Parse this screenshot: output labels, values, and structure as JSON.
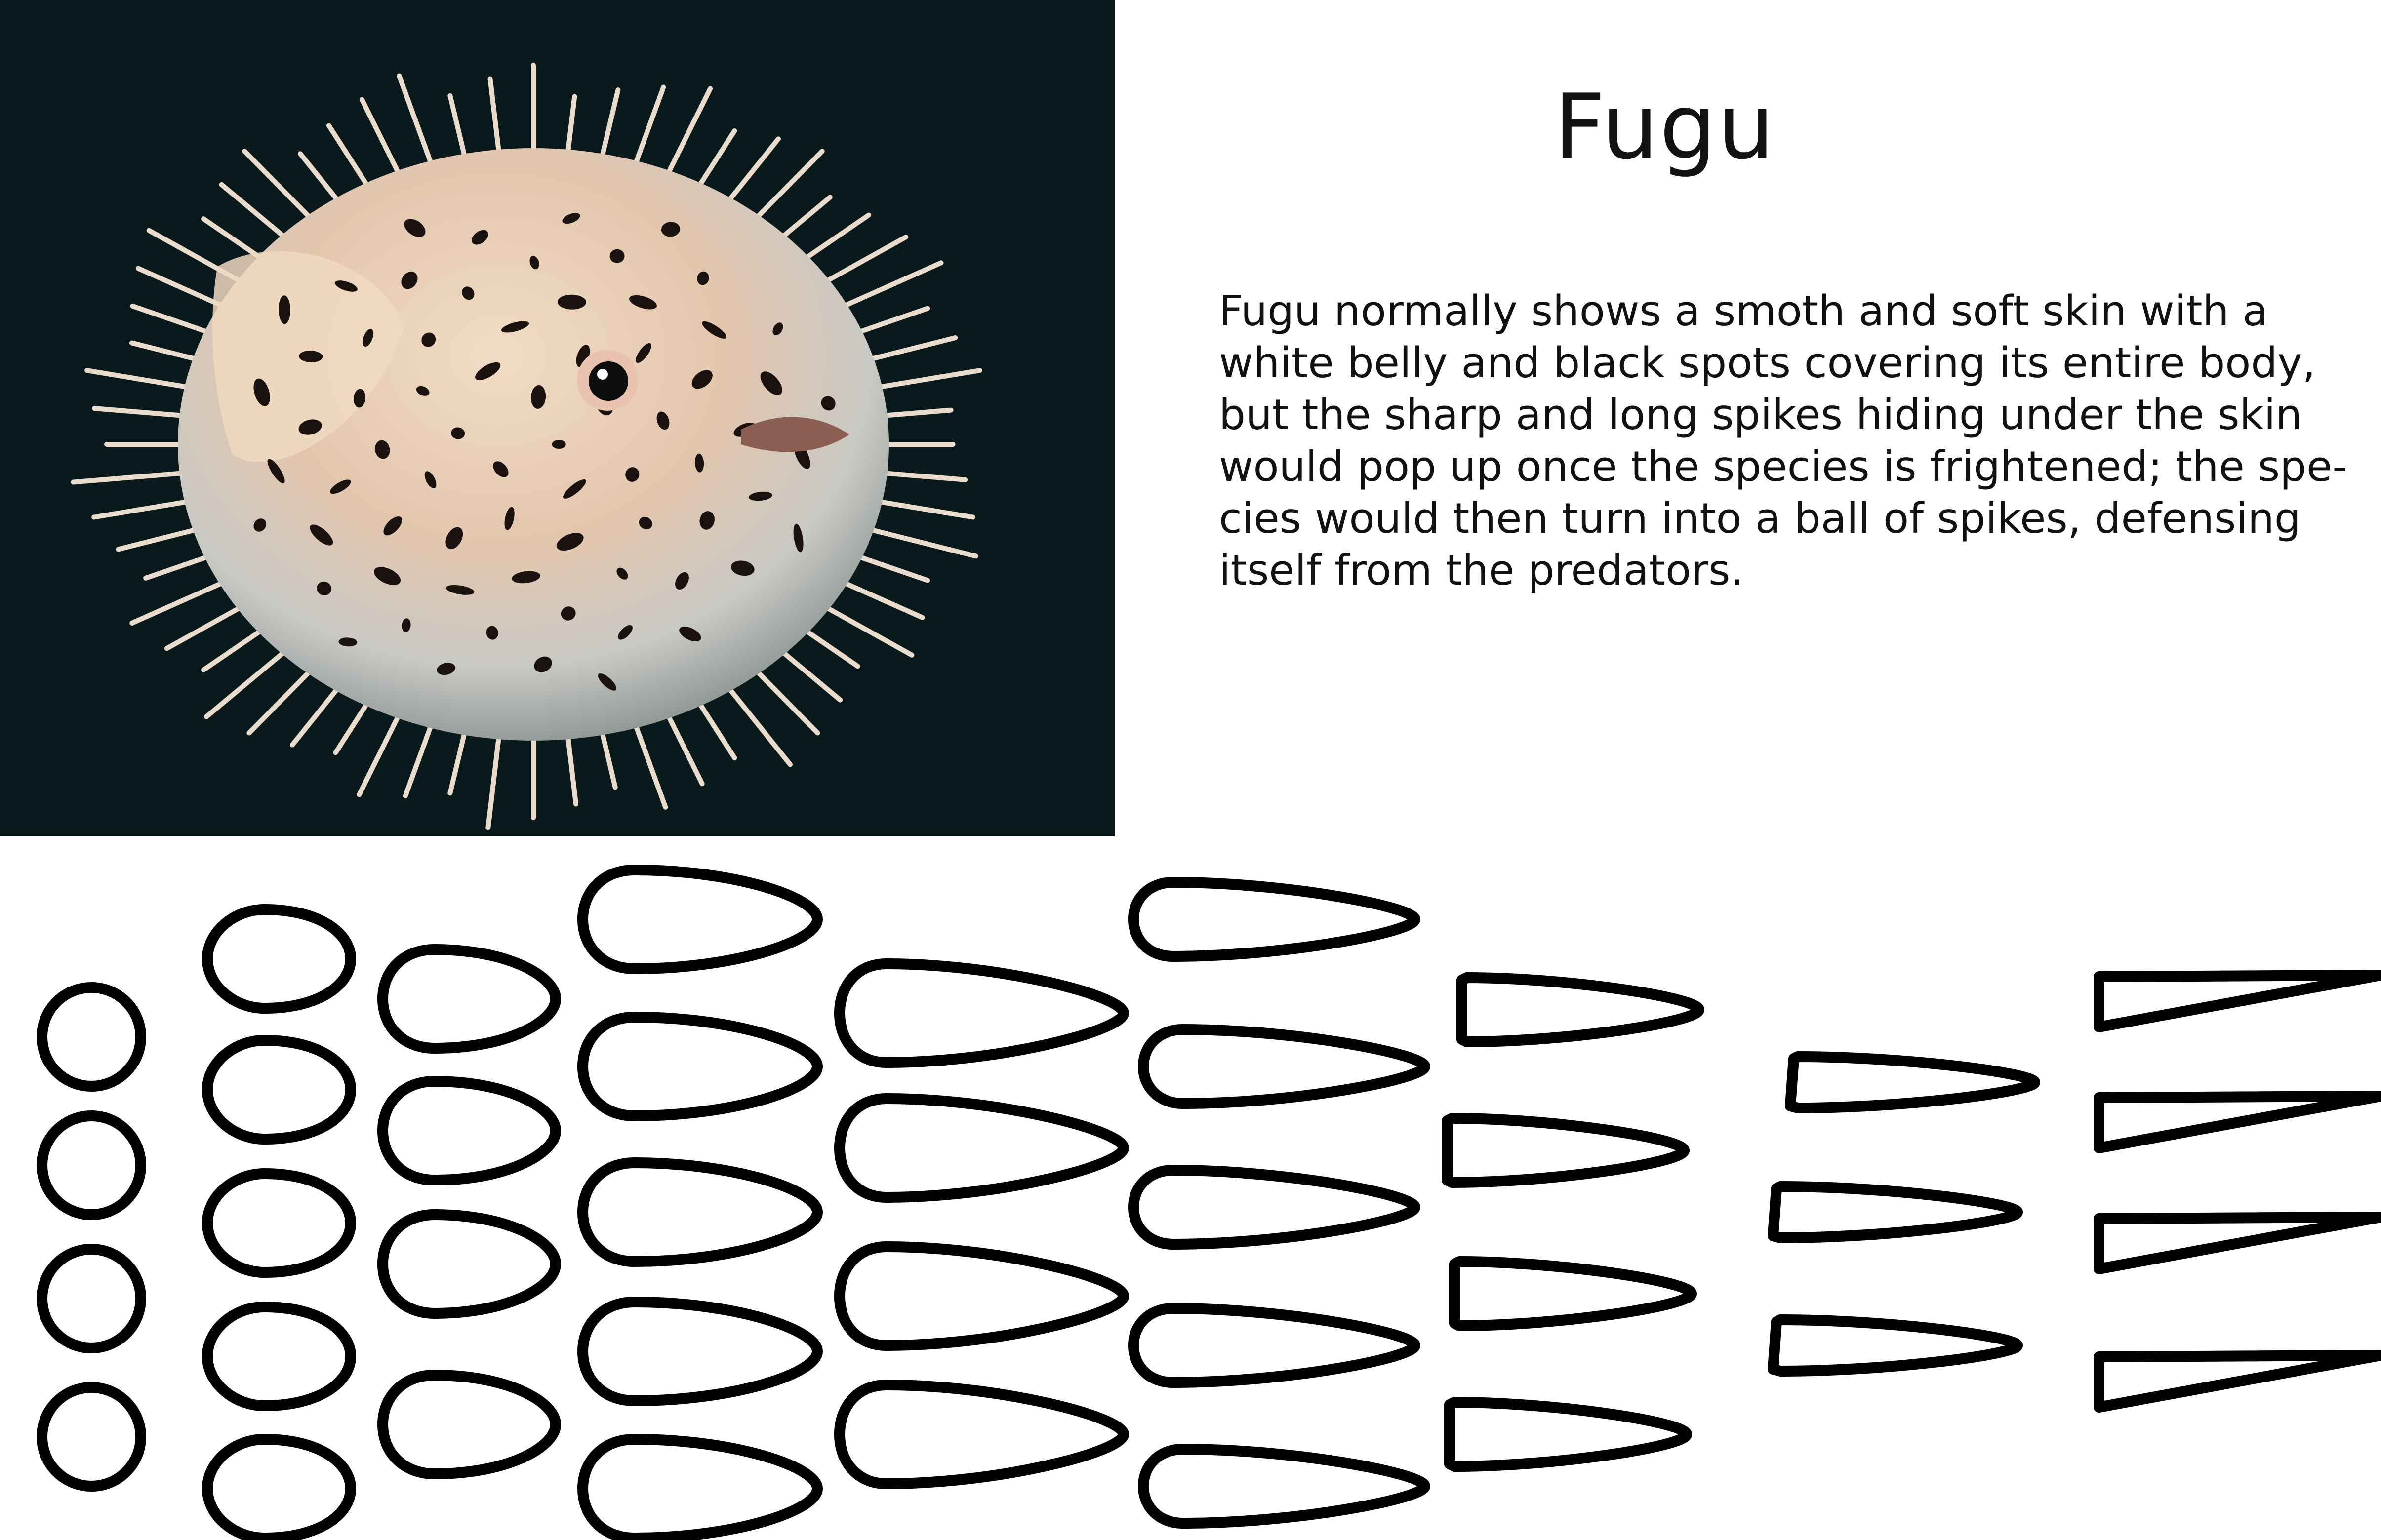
{
  "title": "Fugu",
  "description_lines": [
    "Fugu normally shows a smoth and soft skin with a",
    "white belly and black spots covering its entire body,",
    "but the sharp and long spikes hiding under the skin",
    "would pop up once the species is frightened; the spe-",
    "cies would then turn into a ball of spikes, defensing",
    "itself from the predators."
  ],
  "photo": {
    "subject": "porcupine pufferfish",
    "background_color": "#0a1a1c",
    "body_color": "#e9d3bf",
    "spot_color": "#1a120e"
  },
  "spike_shapes": {
    "stroke_color": "#000000",
    "fill_color": "#ffffff",
    "progression": [
      "circle",
      "round-drop",
      "egg",
      "teardrop",
      "long-teardrop",
      "slim-teardrop",
      "blade",
      "thin-blade",
      "spike"
    ]
  }
}
